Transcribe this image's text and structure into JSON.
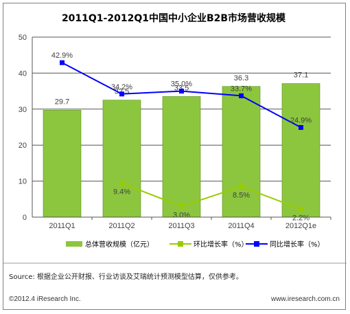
{
  "chart_data": {
    "type": "bar",
    "title": "2011Q1-2012Q1中国中小企业B2B市场营收规模",
    "categories": [
      "2011Q1",
      "2011Q2",
      "2011Q3",
      "2011Q4",
      "2012Q1e"
    ],
    "ylim": [
      0,
      50
    ],
    "yticks": [
      0,
      10,
      20,
      30,
      40,
      50
    ],
    "grid": true,
    "legend_position": "bottom",
    "series": [
      {
        "name": "总体营收规模（亿元）",
        "kind": "bar",
        "color": "#8cc63e",
        "values": [
          29.7,
          32.5,
          33.5,
          36.3,
          37.1
        ],
        "labels": [
          "29.7",
          "32.5",
          "33.5",
          "36.3",
          "37.1"
        ]
      },
      {
        "name": "环比增长率（%）",
        "kind": "line",
        "color": "#99cc00",
        "values": [
          null,
          9.4,
          3.0,
          8.5,
          2.2
        ],
        "labels": [
          "",
          "9.4%",
          "3.0%",
          "8.5%",
          "2.2%"
        ]
      },
      {
        "name": "同比增长率（%）",
        "kind": "line",
        "color": "#0000ff",
        "values": [
          42.9,
          34.2,
          35.0,
          33.7,
          24.9
        ],
        "labels": [
          "42.9%",
          "34.2%",
          "35.0%",
          "33.7%",
          "24.9%"
        ]
      }
    ]
  },
  "footer": {
    "source": "Source: 根据企业公开财报、行业访谈及艾瑞统计预测模型估算，仅供参考。",
    "copyright": "©2012.4 iResearch Inc.",
    "website": "www.iresearch.com.cn"
  }
}
